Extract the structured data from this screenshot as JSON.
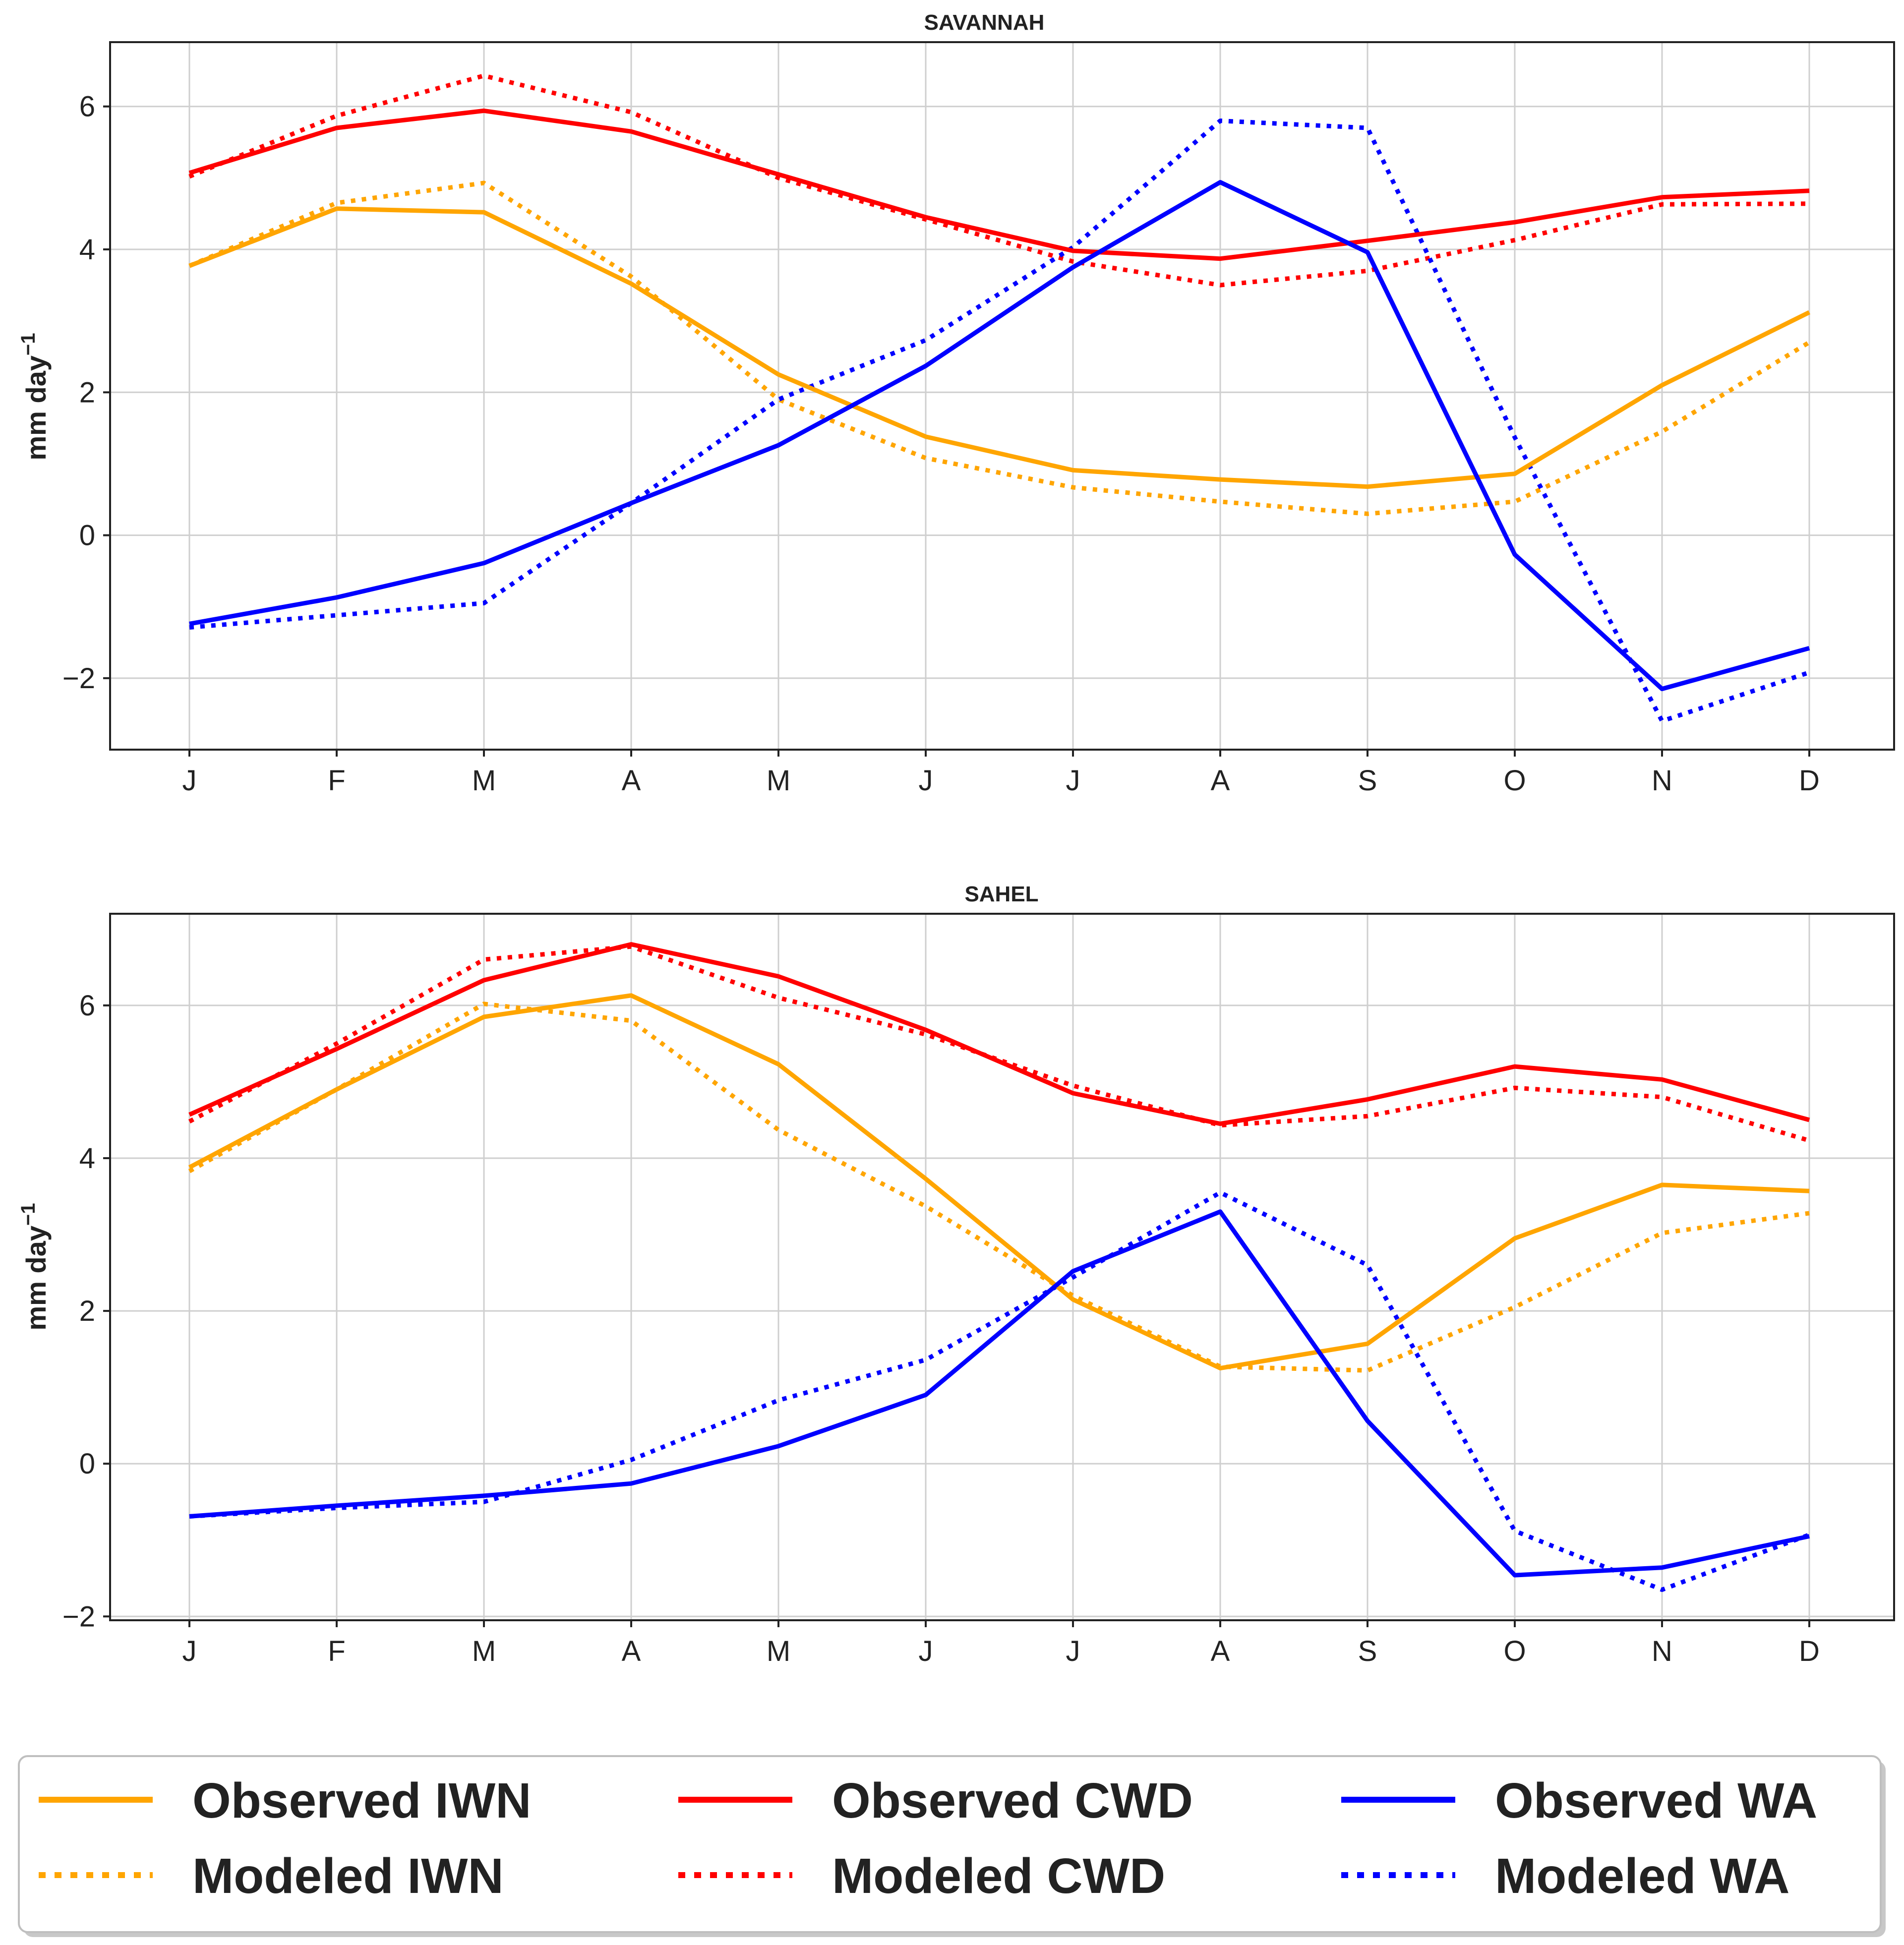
{
  "chart_data": [
    {
      "type": "line",
      "title": "SAVANNAH",
      "xlabel": "",
      "ylabel": "mm day",
      "ylabel_superscript": "−1",
      "categories": [
        "J",
        "F",
        "M",
        "A",
        "M",
        "J",
        "J",
        "A",
        "S",
        "O",
        "N",
        "D"
      ],
      "ylim": [
        -3.0,
        6.9
      ],
      "yticks": [
        -2,
        0,
        2,
        4,
        6
      ],
      "ytick_labels": [
        "−2",
        "0",
        "2",
        "4",
        "6"
      ],
      "grid": true,
      "series": [
        {
          "name": "Observed IWN",
          "color": "#FFA500",
          "style": "solid",
          "values": [
            3.77,
            4.57,
            4.52,
            3.52,
            2.25,
            1.38,
            0.91,
            0.78,
            0.68,
            0.86,
            2.1,
            3.12
          ]
        },
        {
          "name": "Modeled IWN",
          "color": "#FFA500",
          "style": "dotted",
          "values": [
            3.77,
            4.65,
            4.93,
            3.62,
            1.9,
            1.08,
            0.67,
            0.47,
            0.3,
            0.47,
            1.45,
            2.7
          ]
        },
        {
          "name": "Observed CWD",
          "color": "#FF0000",
          "style": "solid",
          "values": [
            5.07,
            5.7,
            5.94,
            5.65,
            5.05,
            4.45,
            3.98,
            3.87,
            4.12,
            4.38,
            4.73,
            4.82
          ]
        },
        {
          "name": "Modeled CWD",
          "color": "#FF0000",
          "style": "dotted",
          "values": [
            5.02,
            5.87,
            6.43,
            5.92,
            5.0,
            4.42,
            3.83,
            3.5,
            3.7,
            4.13,
            4.63,
            4.64
          ]
        },
        {
          "name": "Observed WA",
          "color": "#0000FF",
          "style": "solid",
          "values": [
            -1.24,
            -0.87,
            -0.39,
            0.45,
            1.26,
            2.37,
            3.75,
            4.94,
            3.96,
            -0.27,
            -2.15,
            -1.58
          ]
        },
        {
          "name": "Modeled WA",
          "color": "#0000FF",
          "style": "dotted",
          "values": [
            -1.29,
            -1.12,
            -0.95,
            0.45,
            1.9,
            2.73,
            4.03,
            5.8,
            5.7,
            1.37,
            -2.6,
            -1.92
          ]
        }
      ]
    },
    {
      "type": "line",
      "title": "SAHEL",
      "xlabel": "",
      "ylabel": "mm day",
      "ylabel_superscript": "−1",
      "categories": [
        "J",
        "F",
        "M",
        "A",
        "M",
        "J",
        "J",
        "A",
        "S",
        "O",
        "N",
        "D"
      ],
      "ylim": [
        -2.05,
        7.2
      ],
      "yticks": [
        -2,
        0,
        2,
        4,
        6
      ],
      "ytick_labels": [
        "−2",
        "0",
        "2",
        "4",
        "6"
      ],
      "grid": true,
      "series": [
        {
          "name": "Observed IWN",
          "color": "#FFA500",
          "style": "solid",
          "values": [
            3.88,
            4.9,
            5.85,
            6.13,
            5.23,
            3.73,
            2.15,
            1.25,
            1.57,
            2.95,
            3.65,
            3.57
          ]
        },
        {
          "name": "Modeled IWN",
          "color": "#FFA500",
          "style": "dotted",
          "values": [
            3.83,
            4.9,
            6.02,
            5.8,
            4.37,
            3.37,
            2.2,
            1.27,
            1.22,
            2.05,
            3.02,
            3.28
          ]
        },
        {
          "name": "Observed CWD",
          "color": "#FF0000",
          "style": "solid",
          "values": [
            4.57,
            5.43,
            6.33,
            6.8,
            6.38,
            5.68,
            4.85,
            4.45,
            4.77,
            5.2,
            5.03,
            4.5
          ]
        },
        {
          "name": "Modeled CWD",
          "color": "#FF0000",
          "style": "dotted",
          "values": [
            4.48,
            5.5,
            6.6,
            6.77,
            6.1,
            5.62,
            4.95,
            4.43,
            4.55,
            4.92,
            4.8,
            4.23
          ]
        },
        {
          "name": "Observed WA",
          "color": "#0000FF",
          "style": "solid",
          "values": [
            -0.69,
            -0.55,
            -0.42,
            -0.26,
            0.23,
            0.9,
            2.52,
            3.3,
            0.56,
            -1.46,
            -1.36,
            -0.95
          ]
        },
        {
          "name": "Modeled WA",
          "color": "#0000FF",
          "style": "dotted",
          "values": [
            -0.69,
            -0.58,
            -0.5,
            0.05,
            0.83,
            1.36,
            2.44,
            3.55,
            2.6,
            -0.88,
            -1.65,
            -0.93
          ]
        }
      ]
    }
  ],
  "legend": {
    "placement": "bottom",
    "items": [
      {
        "label": "Observed IWN",
        "color": "#FFA500",
        "style": "solid"
      },
      {
        "label": "Observed CWD",
        "color": "#FF0000",
        "style": "solid"
      },
      {
        "label": "Observed WA",
        "color": "#0000FF",
        "style": "solid"
      },
      {
        "label": "Modeled IWN",
        "color": "#FFA500",
        "style": "dotted"
      },
      {
        "label": "Modeled CWD",
        "color": "#FF0000",
        "style": "dotted"
      },
      {
        "label": "Modeled WA",
        "color": "#0000FF",
        "style": "dotted"
      }
    ]
  }
}
